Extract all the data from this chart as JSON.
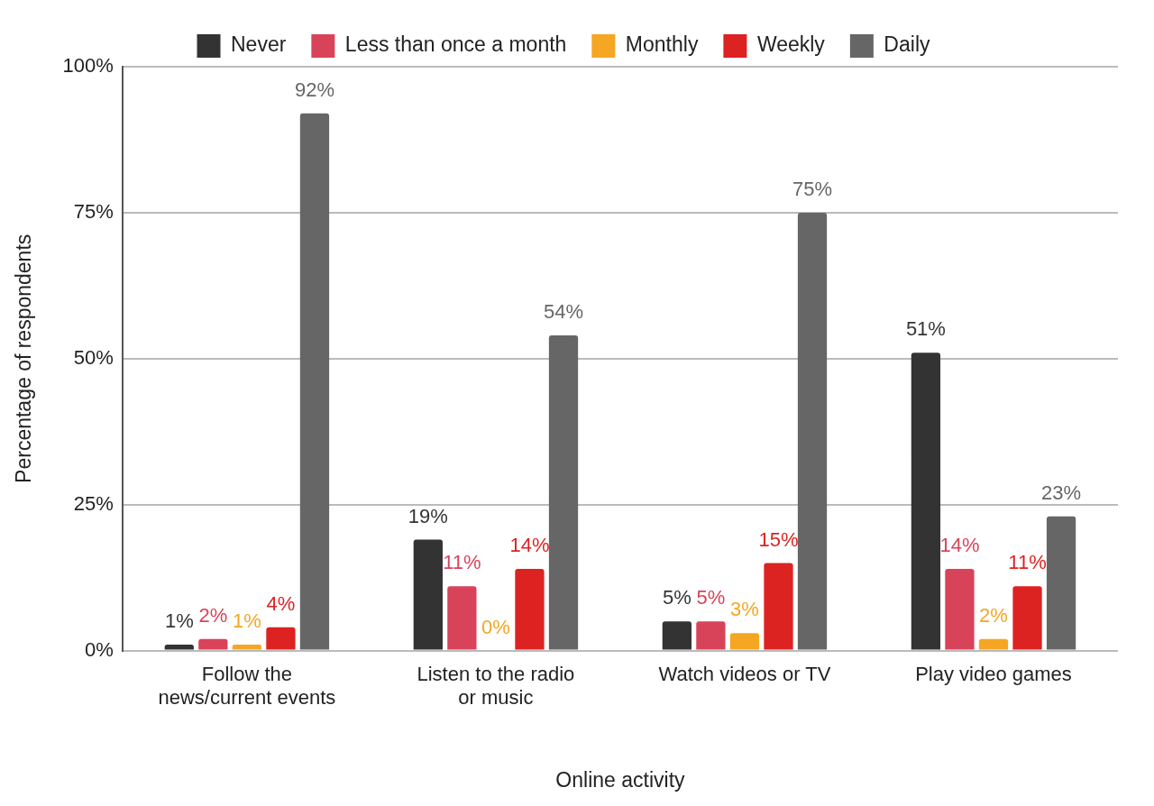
{
  "chart_data": {
    "type": "bar",
    "xlabel": "Online activity",
    "ylabel": "Percentage of respondents",
    "categories": [
      "Follow the news/current events",
      "Listen to the radio or music",
      "Watch videos or TV",
      "Play video games"
    ],
    "series": [
      {
        "name": "Never",
        "color": "#333333",
        "values": [
          1,
          19,
          5,
          51
        ],
        "value_labels": [
          "1%",
          "19%",
          "5%",
          "51%"
        ]
      },
      {
        "name": "Less than once a month",
        "color": "#d9435a",
        "values": [
          2,
          11,
          5,
          14
        ],
        "value_labels": [
          "2%",
          "11%",
          "5%",
          "14%"
        ]
      },
      {
        "name": "Monthly",
        "color": "#f5a623",
        "values": [
          1,
          0,
          3,
          2
        ],
        "value_labels": [
          "1%",
          "0%",
          "3%",
          "2%"
        ]
      },
      {
        "name": "Weekly",
        "color": "#dd2222",
        "values": [
          4,
          14,
          15,
          11
        ],
        "value_labels": [
          "4%",
          "14%",
          "15%",
          "11%"
        ]
      },
      {
        "name": "Daily",
        "color": "#666666",
        "values": [
          92,
          54,
          75,
          23
        ],
        "value_labels": [
          "92%",
          "54%",
          "75%",
          "23%"
        ]
      }
    ],
    "ylim": [
      0,
      100
    ],
    "yticks": [
      {
        "value": 0,
        "label": "0%"
      },
      {
        "value": 25,
        "label": "25%"
      },
      {
        "value": 50,
        "label": "50%"
      },
      {
        "value": 75,
        "label": "75%"
      },
      {
        "value": 100,
        "label": "100%"
      }
    ],
    "grid": "y",
    "legend": "top"
  }
}
